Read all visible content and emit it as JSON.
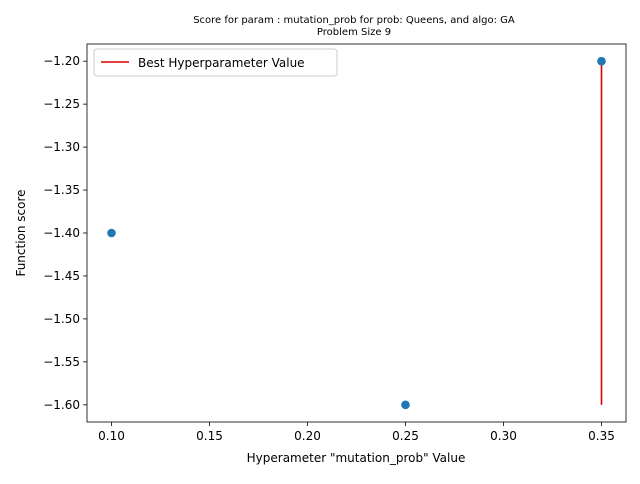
{
  "chart_data": {
    "type": "scatter",
    "title": "Score for param : mutation_prob for prob: Queens, and algo: GA",
    "subtitle": "Problem Size 9",
    "xlabel": "Hyperameter \"mutation_prob\" Value",
    "ylabel": "Function score",
    "xlim": [
      0.0875,
      0.3625
    ],
    "ylim": [
      -1.62,
      -1.18
    ],
    "xticks": [
      0.1,
      0.15,
      0.2,
      0.25,
      0.3,
      0.35
    ],
    "xtick_labels": [
      "0.10",
      "0.15",
      "0.20",
      "0.25",
      "0.30",
      "0.35"
    ],
    "yticks": [
      -1.2,
      -1.25,
      -1.3,
      -1.35,
      -1.4,
      -1.45,
      -1.5,
      -1.55,
      -1.6
    ],
    "ytick_labels": [
      "−1.20",
      "−1.25",
      "−1.30",
      "−1.35",
      "−1.40",
      "−1.45",
      "−1.50",
      "−1.55",
      "−1.60"
    ],
    "grid": false,
    "series": [
      {
        "x": [
          0.1,
          0.25,
          0.35
        ],
        "y": [
          -1.4,
          -1.6,
          -1.2
        ],
        "color": "#1f77b4"
      }
    ],
    "best_line": {
      "name": "Best Hyperparameter Value",
      "x": 0.35,
      "ymin": -1.6,
      "ymax": -1.2,
      "color": "#e00000"
    },
    "legend": {
      "position": "top-left",
      "entries": [
        "Best Hyperparameter Value"
      ]
    }
  }
}
